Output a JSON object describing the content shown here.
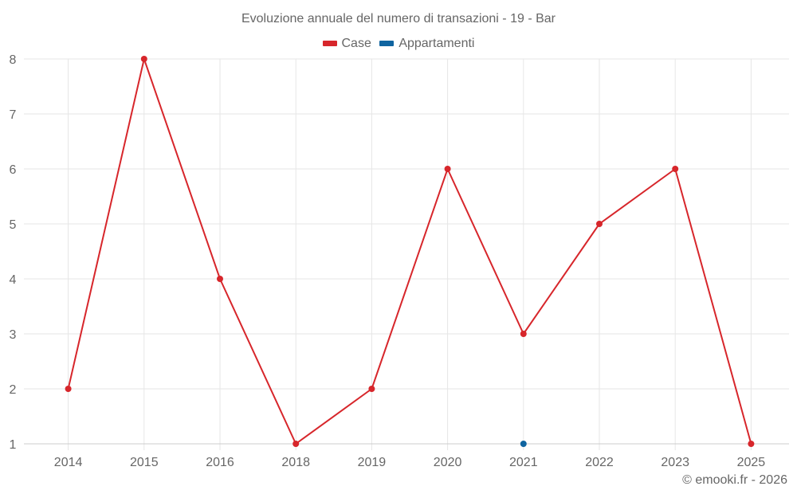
{
  "chart_data": {
    "type": "line",
    "title": "Evoluzione annuale del numero di transazioni - 19 - Bar",
    "xlabel": "",
    "ylabel": "",
    "categories": [
      "2014",
      "2015",
      "2016",
      "2018",
      "2019",
      "2020",
      "2021",
      "2022",
      "2023",
      "2025"
    ],
    "series": [
      {
        "name": "Case",
        "color": "#d7262b",
        "values": [
          2,
          8,
          4,
          1,
          2,
          6,
          3,
          5,
          6,
          1
        ]
      },
      {
        "name": "Appartamenti",
        "color": "#0f64a0",
        "values": [
          null,
          null,
          null,
          null,
          null,
          null,
          1,
          null,
          null,
          null
        ]
      }
    ],
    "ylim": [
      1,
      8
    ],
    "yticks": [
      1,
      2,
      3,
      4,
      5,
      6,
      7,
      8
    ],
    "grid": true,
    "legend_position": "top"
  },
  "header": {
    "title": "Evoluzione annuale del numero di transazioni - 19 - Bar"
  },
  "legend": {
    "items": [
      {
        "label": "Case",
        "color": "#d7262b"
      },
      {
        "label": "Appartamenti",
        "color": "#0f64a0"
      }
    ]
  },
  "footer": {
    "credit": "© emooki.fr - 2026"
  }
}
